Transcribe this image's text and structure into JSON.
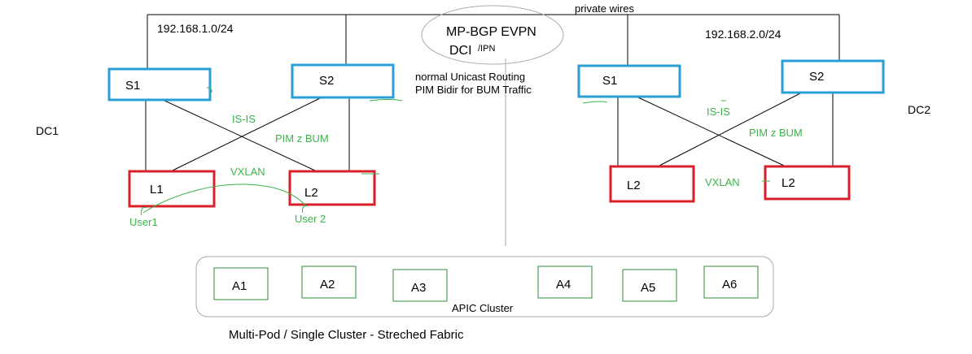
{
  "colors": {
    "spine": "#2a9fd6",
    "leaf": "#d9202a",
    "green": "#3cb44b",
    "apic": "#2e8b3e",
    "line": "#000000",
    "gray": "#aaaaaa",
    "text": "#000000"
  },
  "labels": {
    "private_wires": "private wires",
    "subnet_dc1": "192.168.1.0/24",
    "subnet_dc2": "192.168.2.0/24",
    "mpbgp": "MP-BGP EVPN",
    "dci": "DCI",
    "ipn": "/IPN",
    "unicast": "normal Unicast Routing",
    "pim_bidir": "PIM Bidir for BUM Traffic",
    "dc1": "DC1",
    "dc2": "DC2",
    "apic_cluster": "APIC Cluster",
    "caption": "Multi-Pod / Single Cluster - Streched Fabric"
  },
  "dc1": {
    "spines": [
      "S1",
      "S2"
    ],
    "leaves": [
      "L1",
      "L2"
    ],
    "isis": "IS-IS",
    "pim": "PIM z BUM",
    "vxlan": "VXLAN",
    "user1": "User1",
    "user2": "User 2"
  },
  "dc2": {
    "spines": [
      "S1",
      "S2"
    ],
    "leaves": [
      "L2",
      "L2"
    ],
    "isis": "IS-IS",
    "pim": "PIM  z BUM",
    "vxlan": "VXLAN"
  },
  "apic": [
    "A1",
    "A2",
    "A3",
    "A4",
    "A5",
    "A6"
  ]
}
